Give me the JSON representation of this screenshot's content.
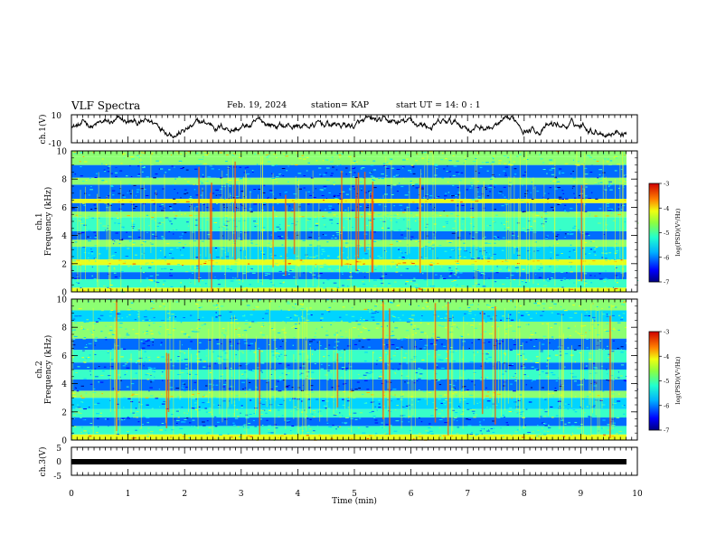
{
  "header": {
    "title": "VLF Spectra",
    "date": "Feb. 19, 2024",
    "station": "station= KAP",
    "start": "start  UT =   14: 0  : 1"
  },
  "colors": {
    "palette": [
      "#00007f",
      "#0000ff",
      "#006cff",
      "#00d4ff",
      "#38ffc8",
      "#8cff72",
      "#e6ff1e",
      "#ffb800",
      "#ff4800",
      "#cc0000"
    ],
    "waveform": "#000000",
    "axis": "#000000"
  },
  "chart_data": [
    {
      "type": "line",
      "panel": "ch1-waveform",
      "ylabel": "ch.1(V)",
      "ylim": [
        -10,
        10
      ],
      "yticks": [
        "10",
        "-10"
      ],
      "xlim": [
        0,
        10
      ],
      "note_values": "continuous noisy trace oscillating roughly between -6 and +9 V"
    },
    {
      "type": "heatmap",
      "panel": "ch1-spectrogram",
      "channel_label": "ch.1",
      "ylabel": "Frequency (kHz)",
      "ylim": [
        0,
        10
      ],
      "yticks": [
        "0",
        "2",
        "4",
        "6",
        "8",
        "10"
      ],
      "xlim": [
        0,
        10
      ],
      "colorbar": {
        "label": "log(PSD)(V²/Hz)",
        "range": [
          -7,
          -3
        ],
        "ticks": [
          "-3",
          "-4",
          "-5",
          "-6",
          "-7"
        ]
      },
      "bands_khz": [
        {
          "from": 0.0,
          "to": 0.3,
          "level": -4.3
        },
        {
          "from": 0.3,
          "to": 0.9,
          "level": -5.2
        },
        {
          "from": 0.9,
          "to": 1.4,
          "level": -5.9
        },
        {
          "from": 1.4,
          "to": 1.9,
          "level": -5.3
        },
        {
          "from": 1.9,
          "to": 2.3,
          "level": -4.2
        },
        {
          "from": 2.3,
          "to": 3.2,
          "level": -5.6
        },
        {
          "from": 3.2,
          "to": 3.7,
          "level": -5.0
        },
        {
          "from": 3.7,
          "to": 4.3,
          "level": -6.1
        },
        {
          "from": 4.3,
          "to": 5.3,
          "level": -5.3
        },
        {
          "from": 5.3,
          "to": 5.7,
          "level": -4.6
        },
        {
          "from": 5.7,
          "to": 6.3,
          "level": -6.3
        },
        {
          "from": 6.3,
          "to": 6.6,
          "level": -4.4
        },
        {
          "from": 6.6,
          "to": 7.6,
          "level": -6.2
        },
        {
          "from": 7.6,
          "to": 8.1,
          "level": -5.0
        },
        {
          "from": 8.1,
          "to": 9.0,
          "level": -6.0
        },
        {
          "from": 9.0,
          "to": 9.6,
          "level": -4.9
        },
        {
          "from": 9.6,
          "to": 10.0,
          "level": -4.6
        }
      ]
    },
    {
      "type": "heatmap",
      "panel": "ch2-spectrogram",
      "channel_label": "ch.2",
      "ylabel": "Frequency (kHz)",
      "ylim": [
        0,
        10
      ],
      "yticks": [
        "0",
        "2",
        "4",
        "6",
        "8",
        "10"
      ],
      "xlim": [
        0,
        10
      ],
      "colorbar": {
        "label": "log(PSD)(V²/Hz)",
        "range": [
          -7,
          -3
        ],
        "ticks": [
          "-3",
          "-4",
          "-5",
          "-6",
          "-7"
        ]
      },
      "bands_khz": [
        {
          "from": 0.0,
          "to": 0.4,
          "level": -4.4
        },
        {
          "from": 0.4,
          "to": 1.0,
          "level": -5.3
        },
        {
          "from": 1.0,
          "to": 1.6,
          "level": -5.9
        },
        {
          "from": 1.6,
          "to": 2.2,
          "level": -5.2
        },
        {
          "from": 2.2,
          "to": 3.0,
          "level": -5.8
        },
        {
          "from": 3.0,
          "to": 3.5,
          "level": -4.6
        },
        {
          "from": 3.5,
          "to": 4.3,
          "level": -6.2
        },
        {
          "from": 4.3,
          "to": 5.0,
          "level": -5.4
        },
        {
          "from": 5.0,
          "to": 5.5,
          "level": -6.0
        },
        {
          "from": 5.5,
          "to": 6.4,
          "level": -5.1
        },
        {
          "from": 6.4,
          "to": 7.2,
          "level": -6.0
        },
        {
          "from": 7.2,
          "to": 8.4,
          "level": -5.0
        },
        {
          "from": 8.4,
          "to": 9.2,
          "level": -5.6
        },
        {
          "from": 9.2,
          "to": 10.0,
          "level": -4.9
        }
      ]
    },
    {
      "type": "line",
      "panel": "ch3-waveform",
      "ylabel": "ch.3(V)",
      "ylim": [
        -5,
        5
      ],
      "yticks": [
        "5",
        "0",
        "-5"
      ],
      "xlim": [
        0,
        10
      ],
      "xlabel": "Time  (min)",
      "xticks": [
        "0",
        "1",
        "2",
        "3",
        "4",
        "5",
        "6",
        "7",
        "8",
        "9",
        "10"
      ],
      "note_values": "flat thick trace near -1 V for the whole record"
    }
  ]
}
